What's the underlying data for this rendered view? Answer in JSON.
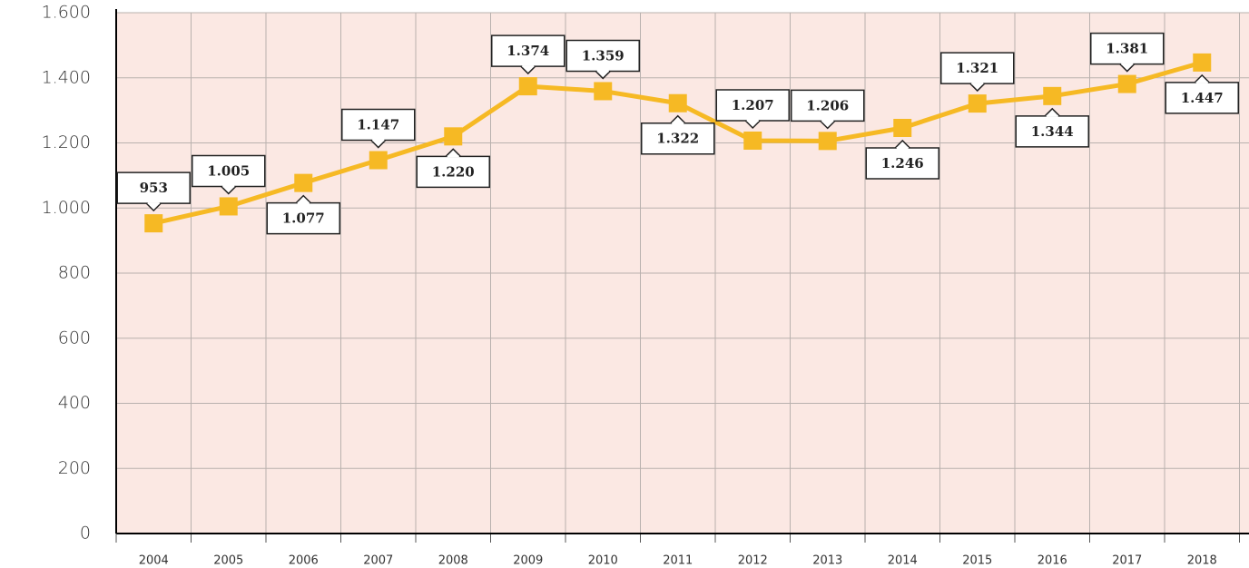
{
  "chart_data": {
    "type": "line",
    "categories": [
      "2004",
      "2005",
      "2006",
      "2007",
      "2008",
      "2009",
      "2010",
      "2011",
      "2012",
      "2013",
      "2014",
      "2015",
      "2016",
      "2017",
      "2018"
    ],
    "series": [
      {
        "color": "#f6b924",
        "values": [
          953,
          1005,
          1077,
          1147,
          1220,
          1374,
          1359,
          1322,
          1207,
          1206,
          1246,
          1321,
          1344,
          1381,
          1447
        ],
        "value_labels": [
          "953",
          "1.005",
          "1.077",
          "1.147",
          "1.220",
          "1.374",
          "1.359",
          "1.322",
          "1.207",
          "1.206",
          "1.246",
          "1.321",
          "1.344",
          "1.381",
          "1.447"
        ]
      }
    ],
    "ylim": [
      0,
      1600
    ],
    "yticks": [
      0,
      200,
      400,
      600,
      800,
      {
        "value": 1000,
        "label": "1.000"
      },
      {
        "value": 1200,
        "label": "1.200"
      },
      {
        "value": 1400,
        "label": "1.400"
      },
      {
        "value": 1600,
        "label": "1.600"
      }
    ],
    "grid": true
  }
}
